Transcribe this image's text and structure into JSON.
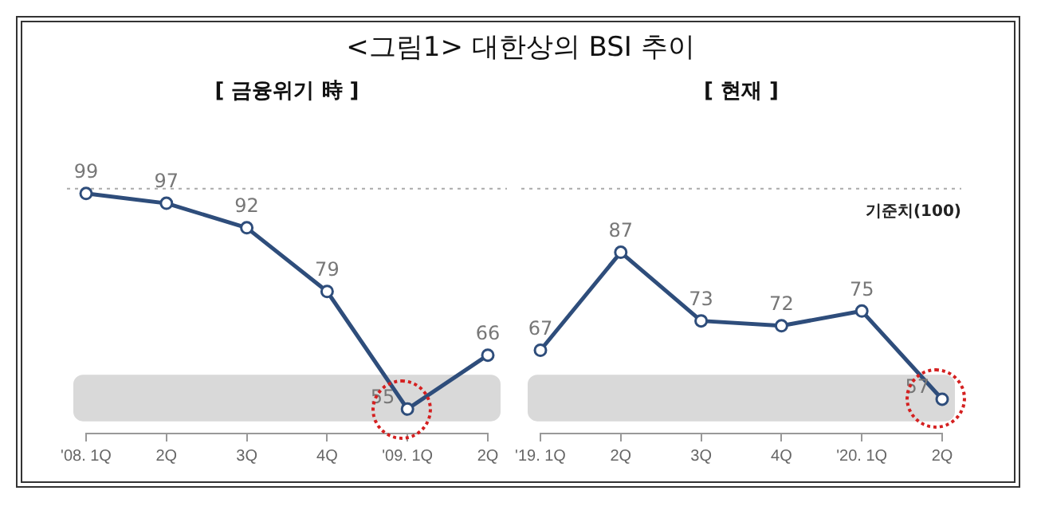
{
  "chart_data": [
    {
      "type": "line",
      "title": "<그림1> 대한상의 BSI 추이",
      "subtitle": "[ 금융위기 時 ]",
      "categories": [
        "'08. 1Q",
        "2Q",
        "3Q",
        "4Q",
        "'09. 1Q",
        "2Q"
      ],
      "series": [
        {
          "color": "#2e4d7b",
          "values": [
            99,
            97,
            92,
            79,
            55,
            66
          ]
        }
      ],
      "tick_labels": "x",
      "grid": false,
      "legend": false,
      "marker": "circle",
      "line_style": "solid",
      "data_labels": true,
      "ref_lines": [
        {
          "axis": "y",
          "value": 100,
          "color": "#aaaaaa",
          "line_style": "dotted"
        }
      ],
      "bands": [
        {
          "axis": "y",
          "from": 52.5,
          "to": 62,
          "color": "#d9d9d9"
        }
      ]
    },
    {
      "type": "line",
      "subtitle": "[ 현재 ]",
      "categories": [
        "'19. 1Q",
        "2Q",
        "3Q",
        "4Q",
        "'20. 1Q",
        "2Q"
      ],
      "series": [
        {
          "color": "#2e4d7b",
          "values": [
            67,
            87,
            73,
            72,
            75,
            57
          ]
        }
      ],
      "tick_labels": "x",
      "grid": false,
      "legend": false,
      "marker": "circle",
      "line_style": "solid",
      "data_labels": true,
      "ref_lines": [
        {
          "axis": "y",
          "value": 100,
          "label": "기준치(100)",
          "color": "#aaaaaa",
          "line_style": "dotted"
        }
      ],
      "bands": [
        {
          "axis": "y",
          "from": 52.5,
          "to": 62,
          "color": "#d9d9d9"
        }
      ]
    }
  ]
}
